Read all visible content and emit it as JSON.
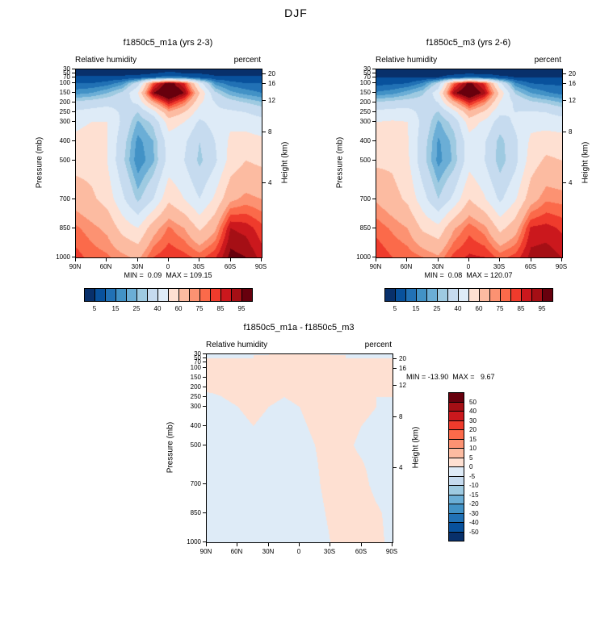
{
  "page": {
    "title": "DJF"
  },
  "palette16": [
    "#08306b",
    "#08519c",
    "#2171b5",
    "#4292c6",
    "#6baed6",
    "#9ecae1",
    "#c6dbef",
    "#deebf7",
    "#fee0d2",
    "#fcbba1",
    "#fc9272",
    "#fb6a4a",
    "#ef3b2c",
    "#cb181d",
    "#a50f15",
    "#67000d"
  ],
  "chart_data": [
    {
      "type": "heatmap",
      "title": "f1850c5_m1a (yrs 2-3)",
      "field_label": "Relative humidity",
      "units": "percent",
      "ylabel_left": "Pressure (mb)",
      "ylabel_right": "Height (km)",
      "stats": "MIN =  0.09  MAX = 109.15",
      "x_ticks": [
        "90N",
        "60N",
        "30N",
        "0",
        "30S",
        "60S",
        "90S"
      ],
      "x_tick_lats": [
        90,
        60,
        30,
        0,
        -30,
        -60,
        -90
      ],
      "pressure_ticks": [
        30,
        50,
        70,
        100,
        150,
        200,
        250,
        300,
        400,
        500,
        700,
        850,
        1000
      ],
      "height_ticks": [
        {
          "km": 20,
          "p": 55
        },
        {
          "km": 16,
          "p": 103
        },
        {
          "km": 12,
          "p": 194
        },
        {
          "km": 8,
          "p": 356
        },
        {
          "km": 4,
          "p": 616
        }
      ],
      "levels": [
        5,
        10,
        15,
        20,
        25,
        30,
        40,
        50,
        60,
        70,
        75,
        80,
        85,
        90,
        95
      ],
      "colorbar_tick_labels": [
        "5",
        "15",
        "25",
        "40",
        "60",
        "75",
        "85",
        "95"
      ],
      "colorbar_tick_level_indices": [
        0,
        2,
        4,
        6,
        8,
        10,
        12,
        14
      ],
      "lats": [
        90,
        75,
        60,
        45,
        30,
        15,
        0,
        -15,
        -30,
        -45,
        -60,
        -75,
        -90
      ],
      "plevs": [
        30,
        50,
        70,
        100,
        150,
        200,
        250,
        300,
        400,
        500,
        700,
        850,
        1000
      ],
      "values": [
        [
          3,
          3,
          3,
          3,
          3,
          3,
          4,
          4,
          3,
          3,
          3,
          3,
          3
        ],
        [
          4,
          4,
          4,
          4,
          4,
          5,
          6,
          5,
          5,
          4,
          4,
          4,
          4
        ],
        [
          6,
          6,
          6,
          6,
          7,
          10,
          14,
          12,
          8,
          6,
          6,
          6,
          6
        ],
        [
          10,
          10,
          12,
          18,
          35,
          80,
          100,
          85,
          45,
          18,
          12,
          10,
          10
        ],
        [
          18,
          20,
          25,
          32,
          50,
          95,
          108,
          95,
          60,
          32,
          22,
          18,
          15
        ],
        [
          32,
          34,
          36,
          36,
          42,
          68,
          88,
          75,
          52,
          40,
          34,
          30,
          26
        ],
        [
          42,
          44,
          46,
          38,
          30,
          45,
          68,
          60,
          45,
          42,
          42,
          40,
          36
        ],
        [
          48,
          50,
          50,
          38,
          24,
          32,
          55,
          50,
          38,
          44,
          48,
          46,
          44
        ],
        [
          52,
          54,
          50,
          34,
          18,
          25,
          45,
          42,
          30,
          40,
          52,
          54,
          52
        ],
        [
          56,
          56,
          50,
          32,
          16,
          24,
          44,
          40,
          28,
          38,
          54,
          60,
          58
        ],
        [
          66,
          62,
          56,
          42,
          28,
          40,
          58,
          50,
          40,
          52,
          68,
          72,
          70
        ],
        [
          76,
          72,
          68,
          56,
          50,
          66,
          76,
          70,
          58,
          68,
          90,
          88,
          82
        ],
        [
          82,
          78,
          76,
          72,
          68,
          80,
          84,
          82,
          78,
          84,
          97,
          95,
          88
        ]
      ]
    },
    {
      "type": "heatmap",
      "title": "f1850c5_m3 (yrs 2-6)",
      "field_label": "Relative humidity",
      "units": "percent",
      "ylabel_left": "Pressure (mb)",
      "ylabel_right": "Height (km)",
      "stats": "MIN =  0.08  MAX = 120.07",
      "x_ticks": [
        "90N",
        "60N",
        "30N",
        "0",
        "30S",
        "60S",
        "90S"
      ],
      "x_tick_lats": [
        90,
        60,
        30,
        0,
        -30,
        -60,
        -90
      ],
      "pressure_ticks": [
        30,
        50,
        70,
        100,
        150,
        200,
        250,
        300,
        400,
        500,
        700,
        850,
        1000
      ],
      "height_ticks": [
        {
          "km": 20,
          "p": 55
        },
        {
          "km": 16,
          "p": 103
        },
        {
          "km": 12,
          "p": 194
        },
        {
          "km": 8,
          "p": 356
        },
        {
          "km": 4,
          "p": 616
        }
      ],
      "levels": [
        5,
        10,
        15,
        20,
        25,
        30,
        40,
        50,
        60,
        70,
        75,
        80,
        85,
        90,
        95
      ],
      "colorbar_tick_labels": [
        "5",
        "15",
        "25",
        "40",
        "60",
        "75",
        "85",
        "95"
      ],
      "colorbar_tick_level_indices": [
        0,
        2,
        4,
        6,
        8,
        10,
        12,
        14
      ],
      "lats": [
        90,
        75,
        60,
        45,
        30,
        15,
        0,
        -15,
        -30,
        -45,
        -60,
        -75,
        -90
      ],
      "plevs": [
        30,
        50,
        70,
        100,
        150,
        200,
        250,
        300,
        400,
        500,
        700,
        850,
        1000
      ],
      "values": [
        [
          3,
          3,
          3,
          3,
          3,
          2,
          3,
          3,
          3,
          3,
          3,
          3,
          3
        ],
        [
          4,
          4,
          4,
          4,
          3,
          4,
          5,
          4,
          4,
          4,
          4,
          4,
          4
        ],
        [
          5,
          5,
          5,
          5,
          5,
          8,
          12,
          10,
          6,
          5,
          5,
          5,
          5
        ],
        [
          8,
          9,
          10,
          16,
          32,
          78,
          98,
          83,
          42,
          16,
          10,
          9,
          9
        ],
        [
          16,
          18,
          23,
          29,
          47,
          93,
          105,
          92,
          57,
          29,
          20,
          16,
          13
        ],
        [
          31,
          33,
          34,
          34,
          40,
          67,
          86,
          73,
          49,
          38,
          32,
          29,
          25
        ],
        [
          43,
          44,
          45,
          36,
          29,
          45,
          67,
          58,
          42,
          40,
          41,
          40,
          36
        ],
        [
          50,
          51,
          50,
          37,
          24,
          33,
          55,
          48,
          35,
          42,
          47,
          46,
          45
        ],
        [
          54,
          56,
          51,
          34,
          19,
          27,
          46,
          41,
          27,
          38,
          52,
          55,
          54
        ],
        [
          58,
          58,
          52,
          33,
          18,
          26,
          46,
          40,
          26,
          37,
          55,
          62,
          60
        ],
        [
          69,
          64,
          58,
          44,
          30,
          43,
          60,
          51,
          38,
          49,
          66,
          74,
          73
        ],
        [
          78,
          74,
          70,
          58,
          53,
          69,
          78,
          72,
          57,
          66,
          86,
          87,
          84
        ],
        [
          84,
          80,
          78,
          75,
          71,
          82,
          86,
          85,
          78,
          82,
          92,
          93,
          90
        ]
      ]
    },
    {
      "type": "heatmap",
      "title": "f1850c5_m1a - f1850c5_m3",
      "field_label": "Relative humidity",
      "units": "percent",
      "ylabel_left": "Pressure (mb)",
      "ylabel_right": "Height (km)",
      "stats": "MIN = -13.90  MAX =   9.67",
      "x_ticks": [
        "90N",
        "60N",
        "30N",
        "0",
        "30S",
        "60S",
        "90S"
      ],
      "x_tick_lats": [
        90,
        60,
        30,
        0,
        -30,
        -60,
        -90
      ],
      "pressure_ticks": [
        30,
        50,
        70,
        100,
        150,
        200,
        250,
        300,
        400,
        500,
        700,
        850,
        1000
      ],
      "height_ticks": [
        {
          "km": 20,
          "p": 55
        },
        {
          "km": 16,
          "p": 103
        },
        {
          "km": 12,
          "p": 194
        },
        {
          "km": 8,
          "p": 356
        },
        {
          "km": 4,
          "p": 616
        }
      ],
      "levels": [
        -50,
        -40,
        -30,
        -20,
        -15,
        -10,
        -5,
        0,
        5,
        10,
        15,
        20,
        30,
        40,
        50
      ],
      "colorbar_tick_labels": [
        "50",
        "40",
        "30",
        "20",
        "15",
        "10",
        "5",
        "0",
        "-5",
        "-10",
        "-15",
        "-20",
        "-30",
        "-40",
        "-50"
      ],
      "colorbar_tick_level_indices": [
        14,
        13,
        12,
        11,
        10,
        9,
        8,
        7,
        6,
        5,
        4,
        3,
        2,
        1,
        0
      ],
      "lats": [
        90,
        75,
        60,
        45,
        30,
        15,
        0,
        -15,
        -30,
        -45,
        -60,
        -75,
        -90
      ],
      "plevs": [
        30,
        50,
        70,
        100,
        150,
        200,
        250,
        300,
        400,
        500,
        700,
        850,
        1000
      ],
      "values": [
        [
          0,
          0,
          0,
          0,
          0,
          1,
          1,
          1,
          0,
          0,
          0,
          0,
          0
        ],
        [
          0,
          0,
          0,
          0,
          1,
          1,
          1,
          1,
          1,
          0,
          0,
          0,
          0
        ],
        [
          1,
          1,
          1,
          1,
          2,
          2,
          2,
          2,
          2,
          1,
          1,
          1,
          1
        ],
        [
          2,
          1,
          2,
          2,
          3,
          2,
          2,
          2,
          3,
          2,
          2,
          1,
          1
        ],
        [
          2,
          2,
          2,
          3,
          3,
          2,
          3,
          3,
          3,
          3,
          2,
          2,
          2
        ],
        [
          1,
          1,
          2,
          2,
          2,
          1,
          2,
          2,
          3,
          2,
          2,
          1,
          1
        ],
        [
          -1,
          0,
          1,
          2,
          1,
          0,
          1,
          2,
          3,
          2,
          1,
          0,
          0
        ],
        [
          -2,
          -1,
          0,
          1,
          0,
          -1,
          0,
          2,
          3,
          2,
          1,
          0,
          -1
        ],
        [
          -2,
          -2,
          -1,
          0,
          -1,
          -2,
          -1,
          1,
          3,
          2,
          0,
          -1,
          -2
        ],
        [
          -2,
          -2,
          -2,
          -1,
          -2,
          -2,
          -2,
          0,
          2,
          1,
          -1,
          -2,
          -2
        ],
        [
          -3,
          -2,
          -2,
          -2,
          -2,
          -3,
          -2,
          -1,
          2,
          3,
          2,
          -2,
          -3
        ],
        [
          -2,
          -2,
          -2,
          -2,
          -3,
          -3,
          -2,
          -2,
          1,
          2,
          4,
          1,
          -2
        ],
        [
          -2,
          -2,
          -2,
          -3,
          -3,
          -2,
          -2,
          -3,
          0,
          2,
          5,
          2,
          -2
        ]
      ]
    }
  ]
}
